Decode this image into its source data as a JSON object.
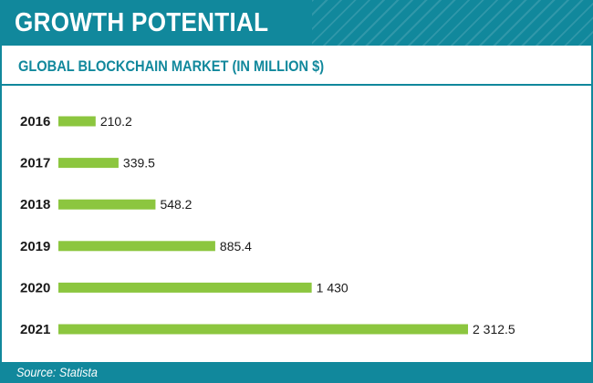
{
  "header": {
    "title": "GROWTH POTENTIAL"
  },
  "subtitle": "GLOBAL BLOCKCHAIN MARKET (IN MILLION $)",
  "footer": {
    "source": "Source: Statista"
  },
  "colors": {
    "brand": "#11889c",
    "bar": "#8cc63f",
    "text": "#1a1a1a"
  },
  "chart_data": {
    "type": "bar",
    "orientation": "horizontal",
    "title": "GLOBAL BLOCKCHAIN MARKET (IN MILLION $)",
    "xlabel": "",
    "ylabel": "",
    "grid": false,
    "legend": "none",
    "categories": [
      "2016",
      "2017",
      "2018",
      "2019",
      "2020",
      "2021"
    ],
    "values": [
      210.2,
      339.5,
      548.2,
      885.4,
      1430,
      2312.5
    ],
    "value_labels": [
      "210.2",
      "339.5",
      "548.2",
      "885.4",
      "1 430",
      "2 312.5"
    ],
    "xlim": [
      0,
      2312.5
    ]
  }
}
